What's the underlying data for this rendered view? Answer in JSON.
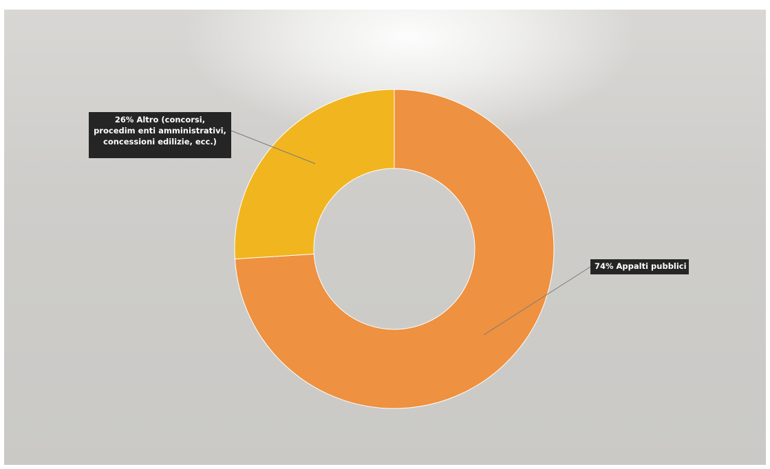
{
  "chart_data": {
    "type": "pie",
    "donut": true,
    "start_angle_deg": 0,
    "direction": "clockwise",
    "slices": [
      {
        "value": 74,
        "percent_label": "74%",
        "label_lines": [
          "74% Appalti pubblici"
        ],
        "color": "#ee9140"
      },
      {
        "value": 26,
        "percent_label": "26%",
        "label_lines": [
          "26% Altro (concorsi,",
          "procedim enti amministrativi,",
          "concessioni edilizie, ecc.)"
        ],
        "color": "#f1b51f"
      }
    ]
  }
}
